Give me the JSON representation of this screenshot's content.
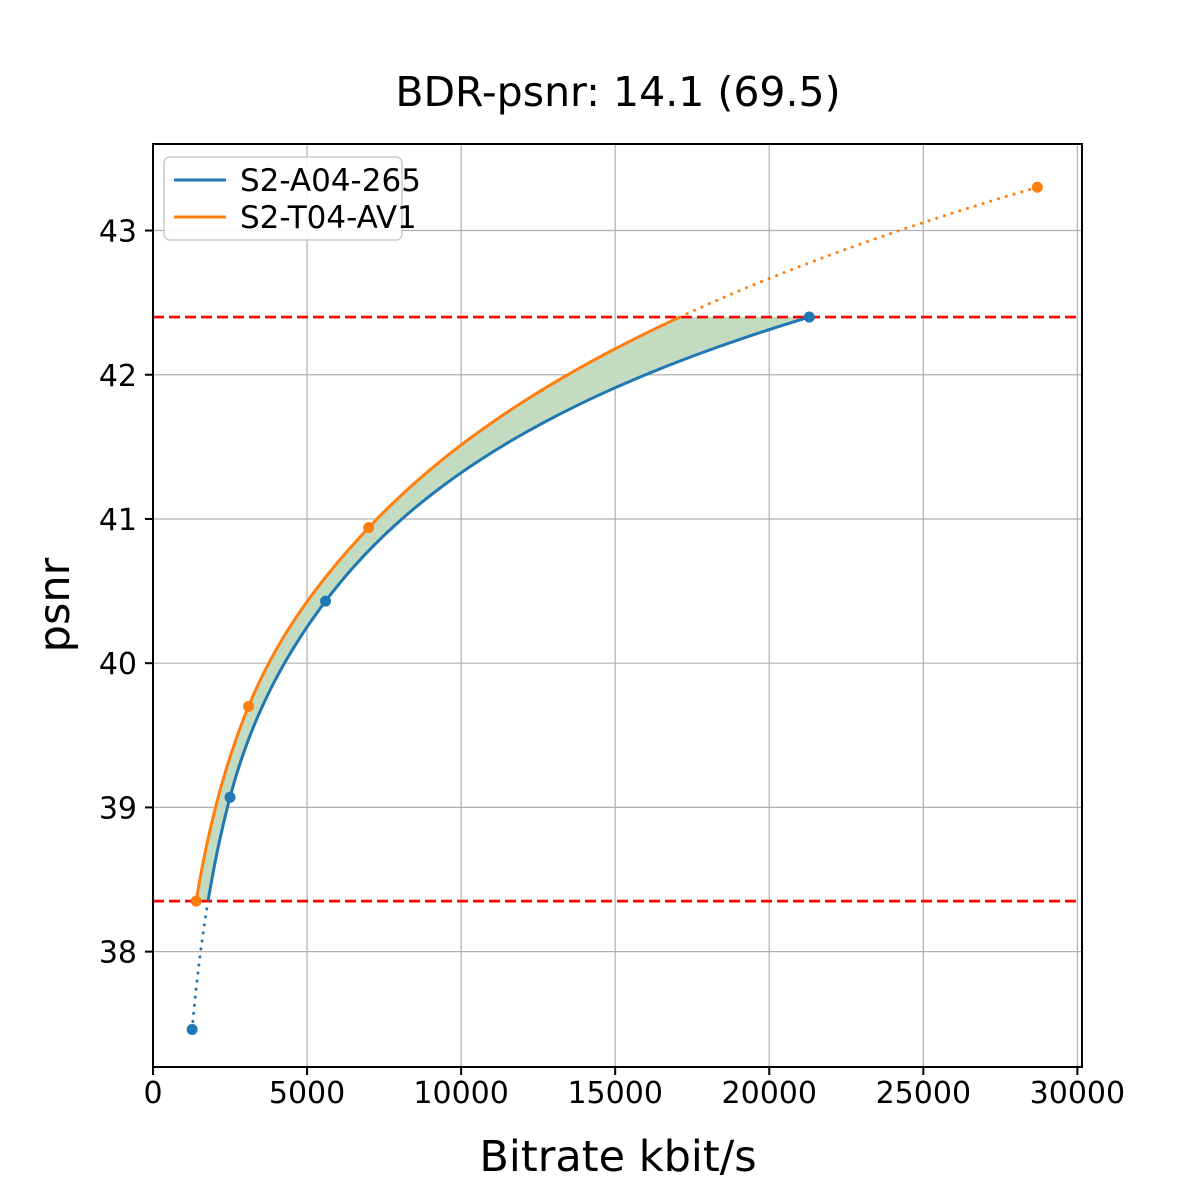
{
  "chart_data": {
    "type": "line",
    "title": "BDR-psnr: 14.1 (69.5)",
    "xlabel": "Bitrate kbit/s",
    "ylabel": "psnr",
    "xlim": [
      0,
      30150
    ],
    "ylim": [
      37.2,
      43.6
    ],
    "x_ticks": [
      0,
      5000,
      10000,
      15000,
      20000,
      25000,
      30000
    ],
    "y_ticks": [
      38,
      39,
      40,
      41,
      42,
      43
    ],
    "grid": true,
    "grid_color": "#b0b0b0",
    "legend_position": "upper left",
    "series": [
      {
        "name": "S2-A04-265",
        "color": "#1f77b4",
        "points": [
          [
            1270,
            37.46
          ],
          [
            2500,
            39.07
          ],
          [
            5600,
            40.43
          ],
          [
            21300,
            42.4
          ]
        ]
      },
      {
        "name": "S2-T04-AV1",
        "color": "#ff7f0e",
        "points": [
          [
            1400,
            38.35
          ],
          [
            3100,
            39.7
          ],
          [
            7000,
            40.94
          ],
          [
            28700,
            43.3
          ]
        ]
      }
    ],
    "overlap_region": {
      "psnr_low": 38.35,
      "psnr_high": 42.4,
      "boundary_color": "#ff0000",
      "boundary_style": "dashed",
      "fill_color": "#c2dbc1"
    },
    "bdr_value": "14.1",
    "bdr_secondary_value": "69.5"
  }
}
